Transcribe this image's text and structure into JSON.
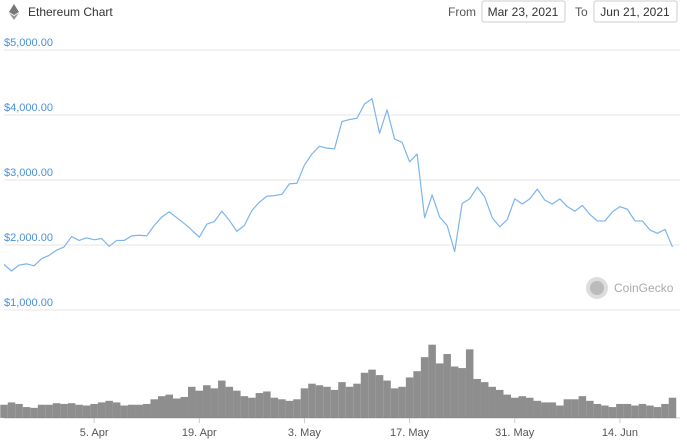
{
  "chart_data": {
    "type": "line",
    "title": "Ethereum Chart",
    "from_label": "From",
    "from_date": "Mar 23, 2021",
    "to_label": "To",
    "to_date": "Jun 21, 2021",
    "watermark": "CoinGecko",
    "x": [
      "2021-03-24",
      "2021-03-25",
      "2021-03-26",
      "2021-03-27",
      "2021-03-28",
      "2021-03-29",
      "2021-03-30",
      "2021-03-31",
      "2021-04-01",
      "2021-04-02",
      "2021-04-03",
      "2021-04-04",
      "2021-04-05",
      "2021-04-06",
      "2021-04-07",
      "2021-04-08",
      "2021-04-09",
      "2021-04-10",
      "2021-04-11",
      "2021-04-12",
      "2021-04-13",
      "2021-04-14",
      "2021-04-15",
      "2021-04-16",
      "2021-04-17",
      "2021-04-18",
      "2021-04-19",
      "2021-04-20",
      "2021-04-21",
      "2021-04-22",
      "2021-04-23",
      "2021-04-24",
      "2021-04-25",
      "2021-04-26",
      "2021-04-27",
      "2021-04-28",
      "2021-04-29",
      "2021-04-30",
      "2021-05-01",
      "2021-05-02",
      "2021-05-03",
      "2021-05-04",
      "2021-05-05",
      "2021-05-06",
      "2021-05-07",
      "2021-05-08",
      "2021-05-09",
      "2021-05-10",
      "2021-05-11",
      "2021-05-12",
      "2021-05-13",
      "2021-05-14",
      "2021-05-15",
      "2021-05-16",
      "2021-05-17",
      "2021-05-18",
      "2021-05-19",
      "2021-05-20",
      "2021-05-21",
      "2021-05-22",
      "2021-05-23",
      "2021-05-24",
      "2021-05-25",
      "2021-05-26",
      "2021-05-27",
      "2021-05-28",
      "2021-05-29",
      "2021-05-30",
      "2021-05-31",
      "2021-06-01",
      "2021-06-02",
      "2021-06-03",
      "2021-06-04",
      "2021-06-05",
      "2021-06-06",
      "2021-06-07",
      "2021-06-08",
      "2021-06-09",
      "2021-06-10",
      "2021-06-11",
      "2021-06-12",
      "2021-06-13",
      "2021-06-14",
      "2021-06-15",
      "2021-06-16",
      "2021-06-17",
      "2021-06-18",
      "2021-06-19",
      "2021-06-20",
      "2021-06-21"
    ],
    "values": [
      1700,
      1600,
      1690,
      1710,
      1680,
      1790,
      1840,
      1920,
      1970,
      2130,
      2070,
      2110,
      2080,
      2100,
      1980,
      2070,
      2070,
      2140,
      2150,
      2140,
      2300,
      2430,
      2510,
      2420,
      2330,
      2230,
      2120,
      2320,
      2360,
      2520,
      2380,
      2210,
      2300,
      2530,
      2660,
      2750,
      2760,
      2780,
      2940,
      2950,
      3230,
      3400,
      3520,
      3490,
      3480,
      3900,
      3930,
      3950,
      4170,
      4250,
      3720,
      4080,
      3630,
      3580,
      3280,
      3400,
      2420,
      2770,
      2430,
      2300,
      1900,
      2640,
      2710,
      2890,
      2740,
      2420,
      2280,
      2390,
      2710,
      2630,
      2710,
      2860,
      2690,
      2630,
      2710,
      2590,
      2520,
      2610,
      2470,
      2370,
      2370,
      2510,
      2590,
      2550,
      2370,
      2370,
      2230,
      2180,
      2240,
      1970
    ],
    "color": "#7cb5ec",
    "volume": {
      "color": "#7a7a7a",
      "values": [
        17,
        20,
        18,
        14,
        13,
        17,
        17,
        19,
        18,
        19,
        17,
        16,
        18,
        20,
        22,
        20,
        16,
        17,
        17,
        18,
        24,
        28,
        30,
        25,
        27,
        40,
        35,
        42,
        38,
        48,
        40,
        35,
        28,
        26,
        32,
        34,
        26,
        24,
        22,
        24,
        38,
        44,
        42,
        40,
        36,
        46,
        40,
        44,
        58,
        62,
        55,
        48,
        38,
        40,
        52,
        60,
        78,
        94,
        70,
        82,
        66,
        64,
        88,
        50,
        46,
        40,
        36,
        30,
        26,
        28,
        26,
        22,
        20,
        20,
        16,
        24,
        24,
        28,
        22,
        18,
        16,
        14,
        18,
        18,
        16,
        18,
        16,
        14,
        18,
        26
      ]
    },
    "xlim": [
      "2021-03-24",
      "2021-06-22"
    ],
    "xticks": [
      {
        "value": "2021-04-05",
        "label": "5. Apr"
      },
      {
        "value": "2021-04-19",
        "label": "19. Apr"
      },
      {
        "value": "2021-05-03",
        "label": "3. May"
      },
      {
        "value": "2021-05-17",
        "label": "17. May"
      },
      {
        "value": "2021-05-31",
        "label": "31. May"
      },
      {
        "value": "2021-06-14",
        "label": "14. Jun"
      }
    ],
    "ylim": [
      1000,
      5000
    ],
    "yticks": [
      {
        "value": 1000,
        "label": "$1,000.00"
      },
      {
        "value": 2000,
        "label": "$2,000.00"
      },
      {
        "value": 3000,
        "label": "$3,000.00"
      },
      {
        "value": 4000,
        "label": "$4,000.00"
      },
      {
        "value": 5000,
        "label": "$5,000.00"
      }
    ],
    "y2lim": [
      0,
      100
    ],
    "grid": true
  }
}
